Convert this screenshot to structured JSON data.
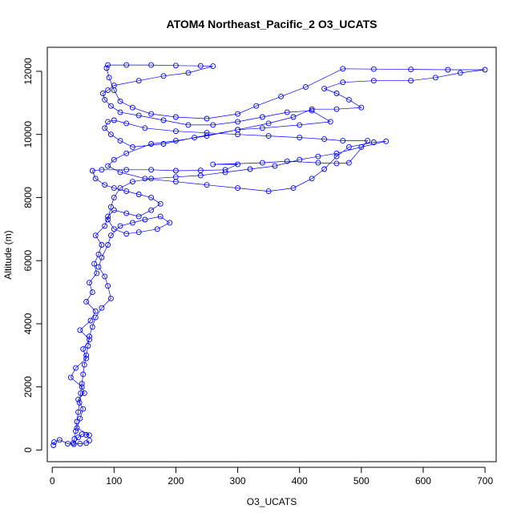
{
  "chart_data": {
    "type": "scatter",
    "title": "ATOM4 Northeast_Pacific_2 O3_UCATS",
    "xlabel": "O3_UCATS",
    "ylabel": "Altitude (m)",
    "xlim": [
      -8,
      718
    ],
    "ylim": [
      -370,
      12760
    ],
    "xticks": [
      0,
      100,
      200,
      300,
      400,
      500,
      600,
      700
    ],
    "yticks": [
      0,
      2000,
      4000,
      6000,
      8000,
      10000,
      12000
    ],
    "grid": false,
    "legend": "none",
    "marker": "open-circle",
    "connected": true,
    "series": [
      {
        "color": "#0000ff",
        "points": [
          [
            2,
            150
          ],
          [
            3,
            250
          ],
          [
            12,
            320
          ],
          [
            25,
            200
          ],
          [
            35,
            180
          ],
          [
            42,
            400
          ],
          [
            48,
            500
          ],
          [
            55,
            480
          ],
          [
            60,
            470
          ],
          [
            40,
            700
          ],
          [
            45,
            1000
          ],
          [
            50,
            1300
          ],
          [
            42,
            1600
          ],
          [
            52,
            1800
          ],
          [
            48,
            2000
          ],
          [
            30,
            2300
          ],
          [
            38,
            2600
          ],
          [
            55,
            2900
          ],
          [
            50,
            3200
          ],
          [
            60,
            3500
          ],
          [
            45,
            3800
          ],
          [
            62,
            4100
          ],
          [
            70,
            4400
          ],
          [
            55,
            4700
          ],
          [
            65,
            5000
          ],
          [
            60,
            5300
          ],
          [
            72,
            5600
          ],
          [
            68,
            5900
          ],
          [
            75,
            6200
          ],
          [
            80,
            6500
          ],
          [
            70,
            6800
          ],
          [
            85,
            7100
          ],
          [
            90,
            7400
          ],
          [
            100,
            7600
          ],
          [
            120,
            7500
          ],
          [
            140,
            7400
          ],
          [
            160,
            7600
          ],
          [
            175,
            7800
          ],
          [
            160,
            8000
          ],
          [
            140,
            8100
          ],
          [
            120,
            8200
          ],
          [
            100,
            8300
          ],
          [
            85,
            8400
          ],
          [
            70,
            8600
          ],
          [
            65,
            8850
          ],
          [
            80,
            8880
          ],
          [
            120,
            8880
          ],
          [
            160,
            8880
          ],
          [
            200,
            8850
          ],
          [
            240,
            8860
          ],
          [
            280,
            8880
          ],
          [
            300,
            9050
          ],
          [
            260,
            9050
          ],
          [
            340,
            9100
          ],
          [
            380,
            9150
          ],
          [
            430,
            9100
          ],
          [
            460,
            9080
          ],
          [
            480,
            9100
          ],
          [
            510,
            9800
          ],
          [
            470,
            9800
          ],
          [
            440,
            9850
          ],
          [
            400,
            9900
          ],
          [
            350,
            9950
          ],
          [
            300,
            10000
          ],
          [
            250,
            10050
          ],
          [
            200,
            10100
          ],
          [
            150,
            10200
          ],
          [
            120,
            10350
          ],
          [
            100,
            10450
          ],
          [
            90,
            10400
          ],
          [
            85,
            10200
          ],
          [
            95,
            10000
          ],
          [
            110,
            9800
          ],
          [
            130,
            9600
          ],
          [
            180,
            9700
          ],
          [
            230,
            9900
          ],
          [
            300,
            10150
          ],
          [
            350,
            10350
          ],
          [
            390,
            10550
          ],
          [
            420,
            10800
          ],
          [
            460,
            10800
          ],
          [
            500,
            10850
          ],
          [
            480,
            11100
          ],
          [
            460,
            11300
          ],
          [
            440,
            11450
          ],
          [
            470,
            11650
          ],
          [
            520,
            11700
          ],
          [
            580,
            11700
          ],
          [
            620,
            11800
          ],
          [
            660,
            11950
          ],
          [
            700,
            12050
          ],
          [
            640,
            12050
          ],
          [
            580,
            12060
          ],
          [
            520,
            12070
          ],
          [
            470,
            12080
          ],
          [
            410,
            11500
          ],
          [
            370,
            11200
          ],
          [
            330,
            10900
          ],
          [
            300,
            10650
          ],
          [
            250,
            10500
          ],
          [
            200,
            10550
          ],
          [
            160,
            10650
          ],
          [
            130,
            10850
          ],
          [
            110,
            11050
          ],
          [
            100,
            11400
          ],
          [
            92,
            11800
          ],
          [
            88,
            12100
          ],
          [
            90,
            12200
          ],
          [
            120,
            12200
          ],
          [
            160,
            12200
          ],
          [
            200,
            12180
          ],
          [
            240,
            12170
          ],
          [
            260,
            12160
          ],
          [
            220,
            11950
          ],
          [
            180,
            11850
          ],
          [
            140,
            11700
          ],
          [
            100,
            11550
          ],
          [
            90,
            11400
          ],
          [
            82,
            11300
          ],
          [
            85,
            11100
          ],
          [
            95,
            10900
          ],
          [
            110,
            10700
          ],
          [
            140,
            10600
          ],
          [
            180,
            10450
          ],
          [
            220,
            10300
          ],
          [
            260,
            10300
          ],
          [
            300,
            10400
          ],
          [
            340,
            10550
          ],
          [
            380,
            10700
          ],
          [
            420,
            10750
          ],
          [
            450,
            10400
          ],
          [
            400,
            10300
          ],
          [
            340,
            10200
          ],
          [
            300,
            10150
          ],
          [
            250,
            9950
          ],
          [
            200,
            9800
          ],
          [
            160,
            9700
          ],
          [
            120,
            9400
          ],
          [
            100,
            9200
          ],
          [
            90,
            9000
          ],
          [
            110,
            8800
          ],
          [
            150,
            8600
          ],
          [
            200,
            8500
          ],
          [
            250,
            8400
          ],
          [
            300,
            8300
          ],
          [
            350,
            8200
          ],
          [
            390,
            8300
          ],
          [
            420,
            8600
          ],
          [
            440,
            8900
          ],
          [
            460,
            9300
          ],
          [
            480,
            9600
          ],
          [
            520,
            9750
          ],
          [
            540,
            9780
          ],
          [
            500,
            9600
          ],
          [
            460,
            9400
          ],
          [
            430,
            9300
          ],
          [
            400,
            9200
          ],
          [
            360,
            9000
          ],
          [
            320,
            8900
          ],
          [
            280,
            8800
          ],
          [
            240,
            8700
          ],
          [
            200,
            8650
          ],
          [
            160,
            8600
          ],
          [
            130,
            8500
          ],
          [
            110,
            8300
          ],
          [
            100,
            8000
          ],
          [
            95,
            7700
          ],
          [
            90,
            7300
          ],
          [
            100,
            7000
          ],
          [
            120,
            6850
          ],
          [
            140,
            6900
          ],
          [
            170,
            7000
          ],
          [
            190,
            7200
          ],
          [
            175,
            7400
          ],
          [
            150,
            7300
          ],
          [
            130,
            7200
          ],
          [
            110,
            7100
          ],
          [
            95,
            6800
          ],
          [
            90,
            6500
          ],
          [
            80,
            6100
          ],
          [
            75,
            5800
          ],
          [
            85,
            5500
          ],
          [
            90,
            5200
          ],
          [
            95,
            4800
          ],
          [
            80,
            4500
          ],
          [
            70,
            4200
          ],
          [
            65,
            3900
          ],
          [
            60,
            3600
          ],
          [
            58,
            3300
          ],
          [
            55,
            3000
          ],
          [
            52,
            2700
          ],
          [
            50,
            2400
          ],
          [
            48,
            2100
          ],
          [
            46,
            1800
          ],
          [
            44,
            1500
          ],
          [
            42,
            1200
          ],
          [
            40,
            900
          ],
          [
            38,
            600
          ],
          [
            36,
            350
          ],
          [
            34,
            220
          ],
          [
            45,
            200
          ],
          [
            55,
            220
          ],
          [
            60,
            300
          ]
        ]
      }
    ]
  }
}
